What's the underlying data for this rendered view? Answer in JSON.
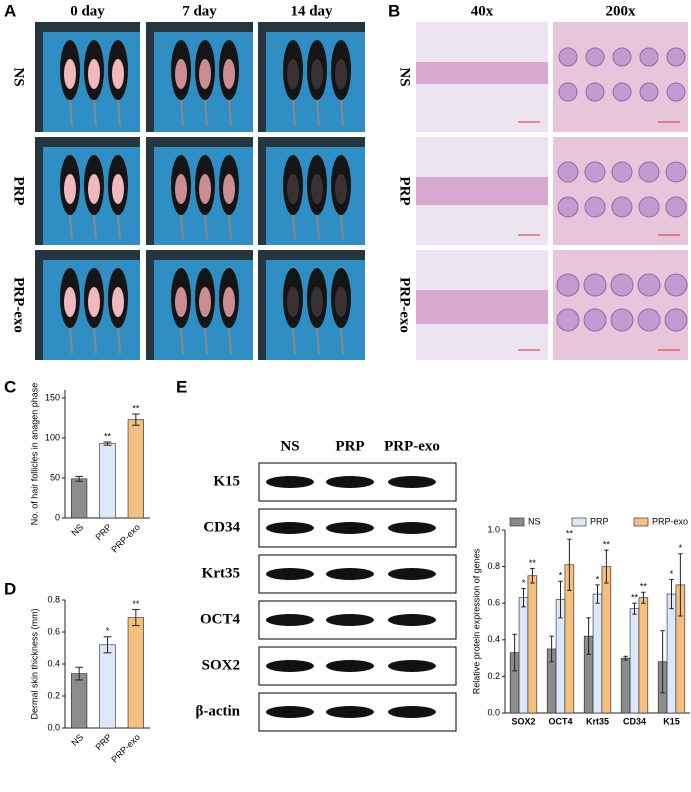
{
  "panel_a": {
    "label": "A",
    "columns": [
      "0 day",
      "7 day",
      "14 day"
    ],
    "rows": [
      "NS",
      "PRP",
      "PRP-exo"
    ]
  },
  "panel_b": {
    "label": "B",
    "columns": [
      "40x",
      "200x"
    ],
    "rows": [
      "NS",
      "PRP",
      "PRP-exo"
    ]
  },
  "panel_c": {
    "label": "C"
  },
  "panel_d": {
    "label": "D"
  },
  "panel_e": {
    "label": "E",
    "blot_columns": [
      "NS",
      "PRP",
      "PRP-exo"
    ],
    "blot_rows": [
      "K15",
      "CD34",
      "Krt35",
      "OCT4",
      "SOX2",
      "β-actin"
    ]
  },
  "chart_data": [
    {
      "type": "bar",
      "ylabel": "No. of hair follicles in anagen phase",
      "categories": [
        "NS",
        "PRP",
        "PRP-exo"
      ],
      "values": [
        49,
        93,
        123
      ],
      "errors": [
        3,
        2,
        7
      ],
      "significance": [
        null,
        "**",
        "**"
      ],
      "colors": [
        "#8c8c8c",
        "#dce8fa",
        "#f5c07f"
      ],
      "ylim": [
        0,
        160
      ],
      "yticks": [
        0,
        50,
        100,
        150
      ]
    },
    {
      "type": "bar",
      "ylabel": "Dermal skin thickness (mm)",
      "categories": [
        "NS",
        "PRP",
        "PRP-exo"
      ],
      "values": [
        0.34,
        0.52,
        0.69
      ],
      "errors": [
        0.04,
        0.05,
        0.05
      ],
      "significance": [
        null,
        "*",
        "**"
      ],
      "colors": [
        "#8c8c8c",
        "#dce8fa",
        "#f5c07f"
      ],
      "ylim": [
        0,
        0.8
      ],
      "yticks": [
        {
          "value": 0,
          "label": "0.0"
        },
        0.2,
        0.4,
        0.6,
        0.8
      ]
    },
    {
      "type": "grouped-bar",
      "ylabel": "Relative protein expression of genes",
      "categories": [
        "SOX2",
        "OCT4",
        "Krt35",
        "CD34",
        "K15"
      ],
      "series": [
        {
          "name": "NS",
          "color": "#8c8c8c",
          "values": [
            0.33,
            0.35,
            0.42,
            0.3,
            0.28
          ],
          "errors": [
            0.1,
            0.07,
            0.1,
            0.01,
            0.17
          ],
          "significance": [
            null,
            null,
            null,
            null,
            null
          ]
        },
        {
          "name": "PRP",
          "color": "#dce8fa",
          "values": [
            0.63,
            0.62,
            0.65,
            0.57,
            0.65
          ],
          "errors": [
            0.05,
            0.1,
            0.05,
            0.03,
            0.08
          ],
          "significance": [
            "*",
            "*",
            "*",
            "**",
            "*"
          ]
        },
        {
          "name": "PRP-exo",
          "color": "#f5c07f",
          "values": [
            0.75,
            0.81,
            0.8,
            0.63,
            0.7
          ],
          "errors": [
            0.04,
            0.14,
            0.09,
            0.03,
            0.17
          ],
          "significance": [
            "**",
            "**",
            "**",
            "**",
            "*"
          ]
        }
      ],
      "ylim": [
        0,
        1.0
      ],
      "yticks": [
        {
          "value": 0,
          "label": "0.0"
        },
        0.2,
        0.4,
        0.6,
        0.8,
        {
          "value": 1.0,
          "label": "1.0"
        }
      ],
      "legend": "top"
    }
  ]
}
